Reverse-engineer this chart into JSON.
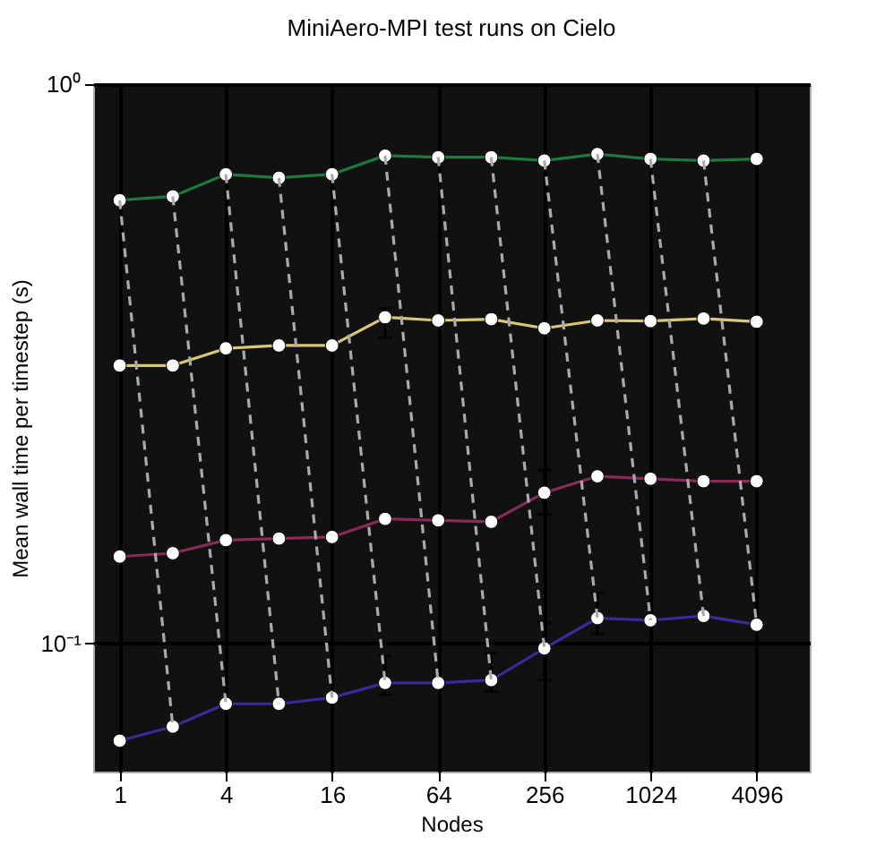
{
  "chart_data": {
    "type": "line",
    "title": "MiniAero-MPI test runs on Cielo",
    "xlabel": "Nodes",
    "ylabel": "Mean wall time per timestep (s)",
    "x": [
      1,
      2,
      4,
      8,
      16,
      32,
      64,
      128,
      256,
      512,
      1024,
      2048,
      4096
    ],
    "series": [
      {
        "color": "#1e7a3c",
        "marker": "circle",
        "values": [
          0.62,
          0.63,
          0.69,
          0.68,
          0.69,
          0.745,
          0.74,
          0.74,
          0.73,
          0.75,
          0.735,
          0.73,
          0.735
        ]
      },
      {
        "color": "#d8c878",
        "marker": "circle",
        "values": [
          0.314,
          0.314,
          0.337,
          0.341,
          0.341,
          0.383,
          0.378,
          0.38,
          0.366,
          0.378,
          0.377,
          0.381,
          0.376
        ],
        "errors": [
          null,
          null,
          null,
          null,
          null,
          [
            0.352,
            0.397
          ],
          null,
          null,
          null,
          null,
          null,
          null,
          null
        ]
      },
      {
        "color": "#8a2a5a",
        "marker": "circle",
        "values": [
          0.143,
          0.145,
          0.153,
          0.154,
          0.155,
          0.167,
          0.166,
          0.165,
          0.186,
          0.199,
          0.197,
          0.195,
          0.195
        ],
        "errors": [
          null,
          null,
          null,
          null,
          null,
          null,
          null,
          null,
          [
            0.17,
            0.204
          ],
          null,
          null,
          null,
          null
        ]
      },
      {
        "color": "#3a2a9a",
        "marker": "circle",
        "values": [
          0.067,
          0.071,
          0.078,
          0.078,
          0.08,
          0.085,
          0.085,
          0.086,
          0.098,
          0.111,
          0.11,
          0.112,
          0.108
        ],
        "errors": [
          null,
          null,
          null,
          null,
          null,
          [
            0.081,
            0.095
          ],
          null,
          [
            0.082,
            0.096
          ],
          [
            0.086,
            0.109
          ],
          [
            0.104,
            0.123
          ],
          null,
          null,
          null
        ]
      },
      {
        "color": "#aaaaaa",
        "line_style": "dashed",
        "x": [
          1,
          2
        ],
        "values": [
          0.62,
          0.071
        ]
      },
      {
        "color": "#aaaaaa",
        "line_style": "dashed",
        "x": [
          2,
          4
        ],
        "values": [
          0.63,
          0.078
        ]
      },
      {
        "color": "#aaaaaa",
        "line_style": "dashed",
        "x": [
          4,
          8
        ],
        "values": [
          0.69,
          0.078
        ]
      },
      {
        "color": "#aaaaaa",
        "line_style": "dashed",
        "x": [
          8,
          16
        ],
        "values": [
          0.68,
          0.08
        ]
      },
      {
        "color": "#aaaaaa",
        "line_style": "dashed",
        "x": [
          16,
          32
        ],
        "values": [
          0.69,
          0.085
        ]
      },
      {
        "color": "#aaaaaa",
        "line_style": "dashed",
        "x": [
          32,
          64
        ],
        "values": [
          0.745,
          0.085
        ]
      },
      {
        "color": "#aaaaaa",
        "line_style": "dashed",
        "x": [
          64,
          128
        ],
        "values": [
          0.74,
          0.086
        ]
      },
      {
        "color": "#aaaaaa",
        "line_style": "dashed",
        "x": [
          128,
          256
        ],
        "values": [
          0.74,
          0.098
        ]
      },
      {
        "color": "#aaaaaa",
        "line_style": "dashed",
        "x": [
          256,
          512
        ],
        "values": [
          0.73,
          0.111
        ]
      },
      {
        "color": "#aaaaaa",
        "line_style": "dashed",
        "x": [
          512,
          1024
        ],
        "values": [
          0.75,
          0.11
        ]
      },
      {
        "color": "#aaaaaa",
        "line_style": "dashed",
        "x": [
          1024,
          2048
        ],
        "values": [
          0.735,
          0.112
        ]
      },
      {
        "color": "#aaaaaa",
        "line_style": "dashed",
        "x": [
          2048,
          4096
        ],
        "values": [
          0.73,
          0.108
        ]
      }
    ],
    "log": "xy",
    "xlim": [
      0.707,
      8192
    ],
    "xticks": [
      1,
      4,
      16,
      64,
      256,
      1024,
      4096
    ],
    "ylim": [
      0.059,
      1.0
    ],
    "yticks": [
      {
        "value": 1,
        "label": "10⁰"
      },
      {
        "value": 0.1,
        "label": "10⁻¹"
      }
    ],
    "grid": true
  }
}
